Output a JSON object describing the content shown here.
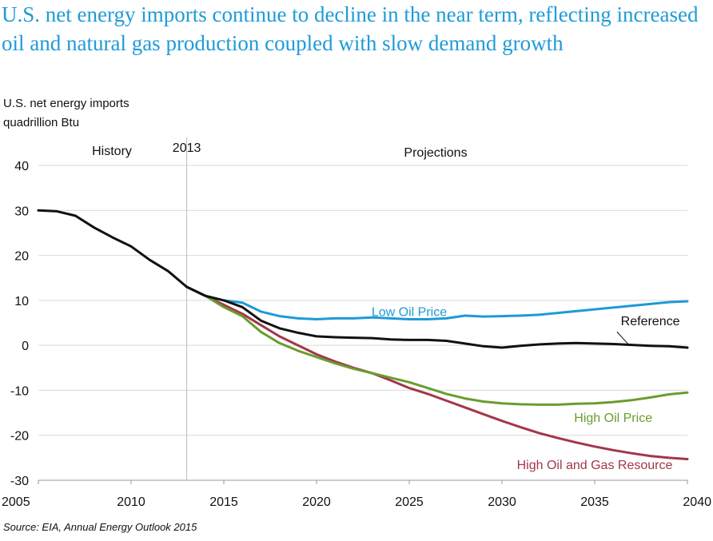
{
  "headline": "U.S. net energy imports continue to decline in the near term, reflecting increased oil and natural gas production coupled with slow demand growth",
  "chart_title": "U.S. net energy imports",
  "units": "quadrillion  Btu",
  "source": "Source:  EIA, Annual Energy Outlook 2015",
  "chart_data": {
    "type": "line",
    "title": "U.S. net energy imports",
    "ylabel": "quadrillion  Btu",
    "xlabel": "",
    "xlim": [
      2005,
      2040
    ],
    "ylim": [
      -30,
      40
    ],
    "x_ticks": [
      "2005",
      "2010",
      "2015",
      "2020",
      "2025",
      "2030",
      "2035",
      "2040"
    ],
    "y_ticks": [
      "40",
      "30",
      "20",
      "10",
      "0",
      "-10",
      "-20",
      "-30"
    ],
    "grid": "horizontal",
    "annotations": {
      "history": "History",
      "divider_year": "2013",
      "projections": "Projections"
    },
    "colors": {
      "Reference": "#111111",
      "Low Oil Price": "#1e9ad6",
      "High Oil Price": "#6a9c2f",
      "High Oil and Gas Resource": "#a3364a"
    },
    "series": [
      {
        "name": "Reference",
        "x": [
          2005,
          2006,
          2007,
          2008,
          2009,
          2010,
          2011,
          2012,
          2013,
          2014,
          2015,
          2016,
          2017,
          2018,
          2019,
          2020,
          2021,
          2022,
          2023,
          2024,
          2025,
          2026,
          2027,
          2028,
          2029,
          2030,
          2031,
          2032,
          2033,
          2034,
          2035,
          2036,
          2037,
          2038,
          2039,
          2040
        ],
        "y": [
          30,
          29.8,
          28.8,
          26.2,
          24,
          22,
          19,
          16.5,
          13,
          11,
          10,
          8.5,
          5.5,
          3.8,
          2.8,
          2,
          1.8,
          1.7,
          1.6,
          1.3,
          1.2,
          1.2,
          1.0,
          0.4,
          -0.2,
          -0.5,
          -0.1,
          0.2,
          0.4,
          0.5,
          0.4,
          0.3,
          0.1,
          -0.1,
          -0.2,
          -0.5
        ]
      },
      {
        "name": "Low Oil Price",
        "x": [
          2013,
          2014,
          2015,
          2016,
          2017,
          2018,
          2019,
          2020,
          2021,
          2022,
          2023,
          2024,
          2025,
          2026,
          2027,
          2028,
          2029,
          2030,
          2031,
          2032,
          2033,
          2034,
          2035,
          2036,
          2037,
          2038,
          2039,
          2040
        ],
        "y": [
          13,
          11,
          10,
          9.5,
          7.5,
          6.5,
          6,
          5.8,
          6,
          6,
          6.2,
          6,
          5.8,
          5.8,
          6.0,
          6.6,
          6.4,
          6.5,
          6.6,
          6.8,
          7.2,
          7.6,
          8.0,
          8.4,
          8.8,
          9.2,
          9.6,
          9.8
        ]
      },
      {
        "name": "High Oil Price",
        "x": [
          2013,
          2014,
          2015,
          2016,
          2017,
          2018,
          2019,
          2020,
          2021,
          2022,
          2023,
          2024,
          2025,
          2026,
          2027,
          2028,
          2029,
          2030,
          2031,
          2032,
          2033,
          2034,
          2035,
          2036,
          2037,
          2038,
          2039,
          2040
        ],
        "y": [
          13,
          11,
          8.5,
          6.5,
          3,
          0.5,
          -1.2,
          -2.6,
          -4,
          -5.2,
          -6.2,
          -7.2,
          -8.2,
          -9.5,
          -10.8,
          -11.8,
          -12.5,
          -12.9,
          -13.1,
          -13.2,
          -13.2,
          -13,
          -12.9,
          -12.6,
          -12.2,
          -11.6,
          -10.9,
          -10.5
        ]
      },
      {
        "name": "High Oil and Gas Resource",
        "x": [
          2013,
          2014,
          2015,
          2016,
          2017,
          2018,
          2019,
          2020,
          2021,
          2022,
          2023,
          2024,
          2025,
          2026,
          2027,
          2028,
          2029,
          2030,
          2031,
          2032,
          2033,
          2034,
          2035,
          2036,
          2037,
          2038,
          2039,
          2040
        ],
        "y": [
          13,
          11,
          9,
          7,
          4.5,
          2,
          0,
          -2,
          -3.6,
          -5,
          -6.2,
          -7.8,
          -9.5,
          -10.8,
          -12.3,
          -13.8,
          -15.3,
          -16.8,
          -18.2,
          -19.5,
          -20.6,
          -21.6,
          -22.5,
          -23.3,
          -24,
          -24.6,
          -25,
          -25.3
        ]
      }
    ],
    "series_labels": [
      {
        "series": "Low Oil Price",
        "text": "Low Oil Price",
        "x": 2025,
        "y": 6.5
      },
      {
        "series": "Reference",
        "text": "Reference",
        "x": 2038,
        "y": 4.5
      },
      {
        "series": "High Oil Price",
        "text": "High Oil Price",
        "x": 2036,
        "y": -17
      },
      {
        "series": "High Oil and Gas Resource",
        "text": "High Oil and Gas Resource",
        "x": 2035,
        "y": -27.5
      }
    ]
  }
}
